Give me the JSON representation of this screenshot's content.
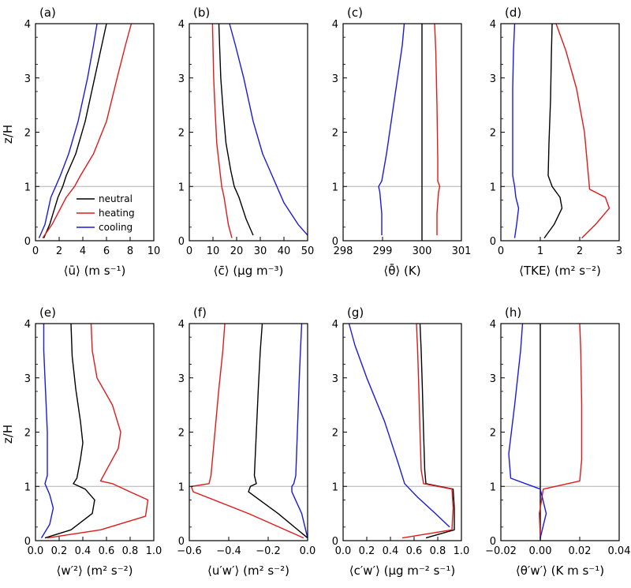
{
  "colors": {
    "neutral": "#000000",
    "heating": "#e01a1a",
    "cooling": "#1a1ae0",
    "ref_line": "#b0b0b0"
  },
  "ylabel_top": "z/H",
  "ylabel_bottom": "z/H",
  "legend": {
    "neutral": "neutral",
    "heating": "heating",
    "cooling": "cooling"
  },
  "chart_data": [
    {
      "type": "line",
      "panel": "(a)",
      "xlabel": "⟨ū⟩ (m s⁻¹)",
      "xlim": [
        0,
        10
      ],
      "ylim": [
        0,
        4
      ],
      "xticks": [
        "0",
        "2",
        "4",
        "6",
        "8",
        "10"
      ],
      "yticks": [
        "0",
        "1",
        "2",
        "3",
        "4"
      ],
      "series": [
        {
          "name": "neutral",
          "x": [
            0.7,
            1.2,
            1.9,
            2.3,
            2.6,
            3.4,
            4.2,
            5.0,
            5.6,
            6.0
          ],
          "z": [
            0.05,
            0.3,
            0.8,
            1.0,
            1.2,
            1.6,
            2.2,
            3.0,
            3.6,
            4.0
          ]
        },
        {
          "name": "heating",
          "x": [
            0.6,
            1.4,
            2.6,
            3.3,
            3.8,
            4.9,
            6.0,
            6.9,
            7.6,
            8.1
          ],
          "z": [
            0.05,
            0.3,
            0.8,
            1.0,
            1.2,
            1.6,
            2.2,
            3.0,
            3.6,
            4.0
          ]
        },
        {
          "name": "cooling",
          "x": [
            0.3,
            0.8,
            1.3,
            1.7,
            2.1,
            2.8,
            3.6,
            4.4,
            4.9,
            5.2
          ],
          "z": [
            0.05,
            0.3,
            0.8,
            1.0,
            1.2,
            1.6,
            2.2,
            3.0,
            3.6,
            4.0
          ]
        }
      ]
    },
    {
      "type": "line",
      "panel": "(b)",
      "xlabel": "⟨c̄⟩ (μg m⁻³)",
      "xlim": [
        0,
        50
      ],
      "ylim": [
        0,
        4
      ],
      "xticks": [
        "0",
        "10",
        "20",
        "30",
        "40",
        "50"
      ],
      "yticks": [
        "0",
        "1",
        "2",
        "3",
        "4"
      ],
      "series": [
        {
          "name": "neutral",
          "x": [
            27.0,
            24.0,
            21.0,
            19.0,
            17.5,
            15.5,
            14.3,
            13.3,
            12.8,
            12.5
          ],
          "z": [
            0.1,
            0.4,
            0.8,
            1.0,
            1.3,
            1.8,
            2.4,
            3.0,
            3.6,
            4.0
          ]
        },
        {
          "name": "heating",
          "x": [
            18.0,
            16.5,
            14.7,
            13.7,
            12.9,
            11.6,
            10.9,
            10.3,
            10.0,
            9.8
          ],
          "z": [
            0.05,
            0.3,
            0.8,
            1.0,
            1.3,
            1.8,
            2.4,
            3.0,
            3.6,
            4.0
          ]
        },
        {
          "name": "cooling",
          "x": [
            50.0,
            46.0,
            40.0,
            37.0,
            35.0,
            31.0,
            27.0,
            23.0,
            19.5,
            17.0
          ],
          "z": [
            0.1,
            0.3,
            0.7,
            1.0,
            1.2,
            1.6,
            2.2,
            3.0,
            3.6,
            4.0
          ]
        }
      ]
    },
    {
      "type": "line",
      "panel": "(c)",
      "xlabel": "⟨θ̄⟩ (K)",
      "xlim": [
        298,
        301
      ],
      "ylim": [
        0,
        4
      ],
      "xticks": [
        "298",
        "299",
        "300",
        "301"
      ],
      "yticks": [
        "0",
        "1",
        "2",
        "3",
        "4"
      ],
      "series": [
        {
          "name": "neutral",
          "x": [
            300.0,
            300.0
          ],
          "z": [
            0.0,
            4.0
          ]
        },
        {
          "name": "heating",
          "x": [
            300.38,
            300.38,
            300.42,
            300.45,
            300.4,
            300.4,
            300.38,
            300.35,
            300.32
          ],
          "z": [
            0.1,
            0.5,
            0.9,
            1.0,
            1.1,
            1.5,
            2.5,
            3.5,
            4.0
          ]
        },
        {
          "name": "cooling",
          "x": [
            298.98,
            298.98,
            298.93,
            298.9,
            298.98,
            299.1,
            299.3,
            299.5,
            299.55
          ],
          "z": [
            0.1,
            0.5,
            0.9,
            1.0,
            1.1,
            1.6,
            2.6,
            3.6,
            4.0
          ]
        }
      ]
    },
    {
      "type": "line",
      "panel": "(d)",
      "xlabel": "⟨TKE⟩ (m² s⁻²)",
      "xlim": [
        0,
        3
      ],
      "ylim": [
        0,
        4
      ],
      "xticks": [
        "0",
        "1",
        "2",
        "3"
      ],
      "yticks": [
        "0",
        "1",
        "2",
        "3",
        "4"
      ],
      "series": [
        {
          "name": "neutral",
          "x": [
            1.1,
            1.35,
            1.55,
            1.5,
            1.3,
            1.2,
            1.22,
            1.26,
            1.28,
            1.3
          ],
          "z": [
            0.05,
            0.3,
            0.6,
            0.8,
            1.0,
            1.2,
            1.8,
            2.6,
            3.4,
            4.0
          ]
        },
        {
          "name": "heating",
          "x": [
            2.05,
            2.4,
            2.75,
            2.65,
            2.25,
            2.22,
            2.12,
            1.92,
            1.65,
            1.4
          ],
          "z": [
            0.05,
            0.3,
            0.6,
            0.8,
            0.95,
            1.2,
            2.0,
            2.8,
            3.5,
            4.0
          ]
        },
        {
          "name": "cooling",
          "x": [
            0.35,
            0.4,
            0.45,
            0.38,
            0.35,
            0.3,
            0.3,
            0.3,
            0.32,
            0.35
          ],
          "z": [
            0.05,
            0.3,
            0.6,
            0.8,
            1.0,
            1.2,
            2.0,
            2.8,
            3.5,
            4.0
          ]
        }
      ]
    },
    {
      "type": "line",
      "panel": "(e)",
      "xlabel": "⟨w′²⟩ (m² s⁻²)",
      "xlim": [
        0,
        1
      ],
      "ylim": [
        0,
        4
      ],
      "xticks": [
        "0.0",
        "0.2",
        "0.4",
        "0.6",
        "0.8",
        "1.0"
      ],
      "yticks": [
        "0",
        "1",
        "2",
        "3",
        "4"
      ],
      "series": [
        {
          "name": "neutral",
          "x": [
            0.08,
            0.3,
            0.48,
            0.5,
            0.42,
            0.32,
            0.35,
            0.38,
            0.4,
            0.38,
            0.34,
            0.31,
            0.3
          ],
          "z": [
            0.05,
            0.2,
            0.5,
            0.75,
            0.95,
            1.05,
            1.15,
            1.5,
            1.8,
            2.2,
            2.8,
            3.4,
            4.0
          ]
        },
        {
          "name": "heating",
          "x": [
            0.1,
            0.55,
            0.93,
            0.95,
            0.75,
            0.65,
            0.55,
            0.6,
            0.7,
            0.72,
            0.65,
            0.52,
            0.48,
            0.47
          ],
          "z": [
            0.05,
            0.2,
            0.45,
            0.75,
            0.95,
            1.05,
            1.1,
            1.3,
            1.7,
            2.0,
            2.5,
            3.0,
            3.5,
            4.0
          ]
        },
        {
          "name": "cooling",
          "x": [
            0.05,
            0.12,
            0.15,
            0.12,
            0.08,
            0.1,
            0.1,
            0.1,
            0.09,
            0.08,
            0.07,
            0.07
          ],
          "z": [
            0.05,
            0.3,
            0.6,
            0.85,
            1.05,
            1.2,
            1.5,
            2.0,
            2.5,
            3.0,
            3.5,
            4.0
          ]
        }
      ]
    },
    {
      "type": "line",
      "panel": "(f)",
      "xlabel": "⟨u′w′⟩ (m² s⁻²)",
      "xlim": [
        -0.6,
        0
      ],
      "ylim": [
        0,
        4
      ],
      "xticks": [
        "−0.6",
        "−0.4",
        "−0.2",
        "0.0"
      ],
      "yticks": [
        "0",
        "1",
        "2",
        "3",
        "4"
      ],
      "series": [
        {
          "name": "neutral",
          "x": [
            0.0,
            -0.15,
            -0.3,
            -0.29,
            -0.26,
            -0.27,
            -0.26,
            -0.25,
            -0.24,
            -0.23
          ],
          "z": [
            0.05,
            0.5,
            0.9,
            1.0,
            1.05,
            1.2,
            2.0,
            2.8,
            3.5,
            4.0
          ]
        },
        {
          "name": "heating",
          "x": [
            -0.02,
            -0.3,
            -0.58,
            -0.59,
            -0.5,
            -0.49,
            -0.47,
            -0.45,
            -0.43,
            -0.42
          ],
          "z": [
            0.05,
            0.5,
            0.9,
            1.0,
            1.05,
            1.2,
            2.0,
            2.8,
            3.5,
            4.0
          ]
        },
        {
          "name": "cooling",
          "x": [
            0.0,
            -0.03,
            -0.08,
            -0.08,
            -0.07,
            -0.06,
            -0.05,
            -0.04,
            -0.03
          ],
          "z": [
            0.05,
            0.5,
            0.9,
            1.0,
            1.05,
            1.2,
            2.2,
            3.2,
            4.0
          ]
        }
      ]
    },
    {
      "type": "line",
      "panel": "(g)",
      "xlabel": "⟨c′w′⟩ (μg m⁻² s⁻¹)",
      "xlim": [
        0,
        1
      ],
      "ylim": [
        0,
        4
      ],
      "xticks": [
        "0.0",
        "0.2",
        "0.4",
        "0.6",
        "0.8",
        "1.0"
      ],
      "yticks": [
        "0",
        "1",
        "2",
        "3",
        "4"
      ],
      "series": [
        {
          "name": "neutral",
          "x": [
            0.7,
            0.94,
            0.94,
            0.93,
            0.7,
            0.69,
            0.68,
            0.67,
            0.66,
            0.65
          ],
          "z": [
            0.05,
            0.2,
            0.6,
            0.95,
            1.05,
            1.3,
            2.0,
            2.8,
            3.5,
            4.0
          ]
        },
        {
          "name": "heating",
          "x": [
            0.5,
            0.92,
            0.93,
            0.92,
            0.68,
            0.66,
            0.65,
            0.64,
            0.63,
            0.62
          ],
          "z": [
            0.05,
            0.2,
            0.6,
            0.95,
            1.05,
            1.3,
            2.0,
            2.8,
            3.5,
            4.0
          ]
        },
        {
          "name": "cooling",
          "x": [
            0.9,
            0.78,
            0.63,
            0.52,
            0.47,
            0.35,
            0.2,
            0.1,
            0.05
          ],
          "z": [
            0.25,
            0.5,
            0.8,
            1.05,
            1.4,
            2.2,
            3.0,
            3.6,
            4.0
          ]
        }
      ]
    },
    {
      "type": "line",
      "panel": "(h)",
      "xlabel": "⟨θ′w′⟩ (K m s⁻¹)",
      "xlim": [
        -0.02,
        0.04
      ],
      "ylim": [
        0,
        4
      ],
      "xticks": [
        "−0.02",
        "0.00",
        "0.02",
        "0.04"
      ],
      "yticks": [
        "0",
        "1",
        "2",
        "3",
        "4"
      ],
      "series": [
        {
          "name": "neutral",
          "x": [
            0.0,
            0.0
          ],
          "z": [
            0.0,
            4.0
          ]
        },
        {
          "name": "heating",
          "x": [
            0.0,
            -0.0005,
            0.0015,
            0.02,
            0.021,
            0.021,
            0.0205,
            0.02
          ],
          "z": [
            0.05,
            0.5,
            0.95,
            1.1,
            1.5,
            2.5,
            3.5,
            4.0
          ]
        },
        {
          "name": "cooling",
          "x": [
            0.0,
            0.003,
            0.0,
            -0.015,
            -0.016,
            -0.013,
            -0.01,
            -0.009
          ],
          "z": [
            0.05,
            0.5,
            0.95,
            1.15,
            1.6,
            2.5,
            3.5,
            4.0
          ]
        }
      ]
    }
  ]
}
